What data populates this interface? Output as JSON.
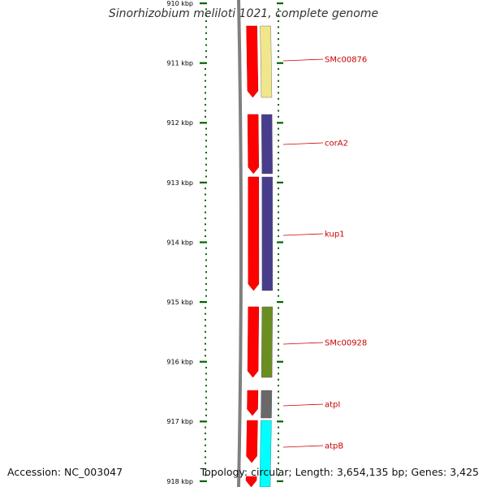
{
  "title": "Sinorhizobium meliloti 1021, complete genome",
  "footer": {
    "accession": "Accession: NC_003047",
    "summary": "Topology: circular; Length: 3,654,135 bp; Genes: 3,425"
  },
  "ruler": {
    "unit": "kbp",
    "labels": [
      "910 kbp",
      "911 kbp",
      "912 kbp",
      "913 kbp",
      "914 kbp",
      "915 kbp",
      "916 kbp",
      "917 kbp",
      "918 kbp"
    ]
  },
  "colors": {
    "backbone": "#808080",
    "cds": "#ff0000",
    "label": "#cc0000",
    "tick": "#006400"
  },
  "genes": [
    {
      "name": "SMc00876",
      "color": "#f0e68c"
    },
    {
      "name": "corA2",
      "color": "#483d8b"
    },
    {
      "name": "kup1",
      "color": "#483d8b"
    },
    {
      "name": "SMc00928",
      "color": "#6b8e23"
    },
    {
      "name": "atpI",
      "color": "#696969"
    },
    {
      "name": "atpB",
      "color": "#00ffff"
    }
  ]
}
